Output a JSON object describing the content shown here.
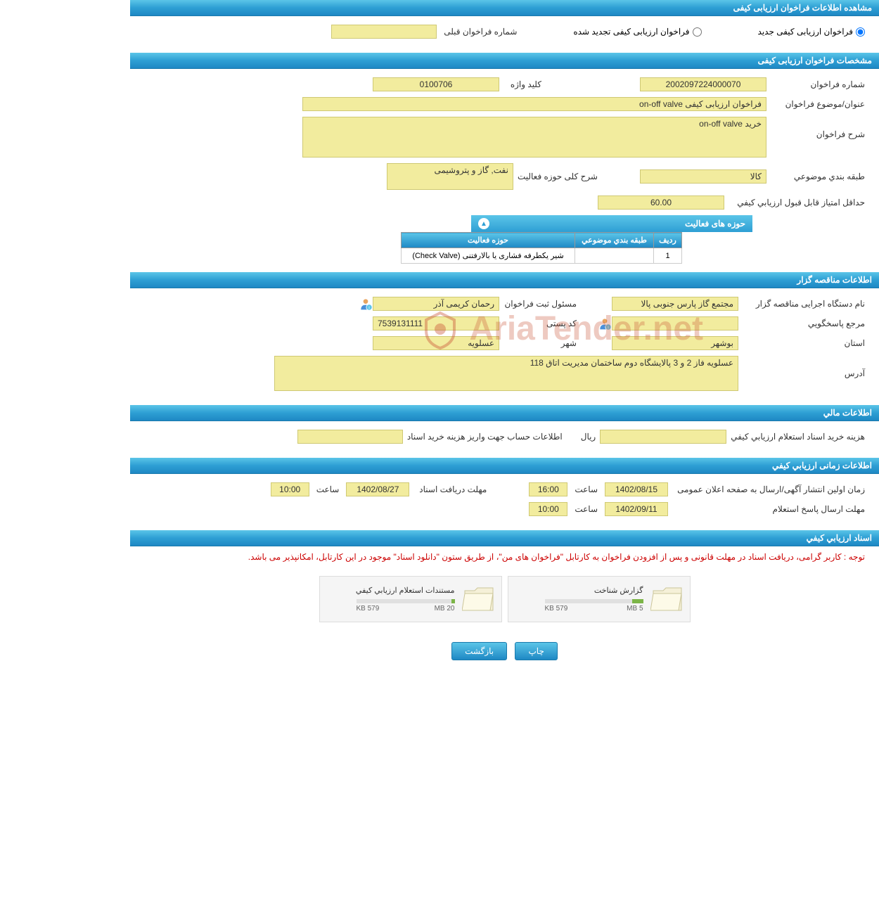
{
  "header_main": "مشاهده اطلاعات فراخوان ارزیابی کیفی",
  "radio_options": {
    "opt1": "فراخوان ارزیابی کیفی جدید",
    "opt2": "فراخوان ارزیابی کیفی تجدید شده",
    "prev_label": "شماره فراخوان قبلی",
    "prev_value": ""
  },
  "spec": {
    "header": "مشخصات فراخوان ارزیابی کیفی",
    "number_label": "شماره فراخوان",
    "number": "2002097224000070",
    "keyword_label": "کلید واژه",
    "keyword": "0100706",
    "title_label": "عنوان/موضوع فراخوان",
    "title": "فراخوان ارزیابی کیفی on-off valve",
    "desc_label": "شرح فراخوان",
    "desc": "خرید on-off valve",
    "category_label": "طبقه بندي موضوعي",
    "category": "کالا",
    "activity_scope_label": "شرح کلی حوزه فعالیت",
    "activity_scope": "نفت, گاز و پتروشیمی",
    "min_score_label": "حداقل امتياز قابل قبول ارزيابي کيفي",
    "min_score": "60.00"
  },
  "activity": {
    "header": "حوزه های فعالیت",
    "col_row": "ردیف",
    "col_cat": "طبقه بندي موضوعي",
    "col_act": "حوزه فعالیت",
    "row1_num": "1",
    "row1_cat": "",
    "row1_act": "شیر یکطرفه فشاری یا بالارفتنی (Check Valve)"
  },
  "issuer": {
    "header": "اطلاعات مناقصه گزار",
    "org_label": "نام دستگاه اجرایی مناقصه گزار",
    "org": "مجتمع گاز پارس جنوبی  پالا",
    "responsible_label": "مسئول ثبت فراخوان",
    "responsible": "رحمان کریمی آذر",
    "ref_label": "مرجع پاسخگويي",
    "ref": "",
    "postal_label": "کد پستی",
    "postal": "7539131111",
    "province_label": "استان",
    "province": "بوشهر",
    "city_label": "شهر",
    "city": "عسلویه",
    "address_label": "آدرس",
    "address": "عسلویه فاز 2 و 3 پالایشگاه دوم ساختمان مدیریت اتاق 118"
  },
  "finance": {
    "header": "اطلاعات مالي",
    "cost_label": "هزینه خرید اسناد استعلام ارزيابي کيفي",
    "cost": "",
    "currency": "ریال",
    "account_label": "اطلاعات حساب جهت واریز هزینه خرید اسناد",
    "account": ""
  },
  "timing": {
    "header": "اطلاعات زمانی ارزيابي کيفي",
    "pub_label": "زمان اولین انتشار آگهی/ارسال به صفحه اعلان عمومی",
    "pub_date": "1402/08/15",
    "hour_label": "ساعت",
    "pub_time": "16:00",
    "receive_label": "مهلت دریافت اسناد",
    "receive_date": "1402/08/27",
    "receive_time": "10:00",
    "reply_label": "مهلت ارسال پاسخ استعلام",
    "reply_date": "1402/09/11",
    "reply_time": "10:00"
  },
  "docs": {
    "header": "اسناد ارزيابي کيفي",
    "notice": "توجه : کاربر گرامی، دریافت اسناد در مهلت قانونی و پس از افزودن فراخوان به کارتابل \"فراخوان های من\"، از طریق ستون \"دانلود اسناد\" موجود در این کارتابل، امکانپذیر می باشد.",
    "doc1_title": "گزارش شناخت",
    "doc1_used": "579 KB",
    "doc1_total": "5 MB",
    "doc1_pct": 11,
    "doc2_title": "مستندات استعلام ارزيابي کيفي",
    "doc2_used": "579 KB",
    "doc2_total": "20 MB",
    "doc2_pct": 3
  },
  "buttons": {
    "print": "چاپ",
    "back": "بازگشت"
  },
  "watermark": "AriaTender.net"
}
